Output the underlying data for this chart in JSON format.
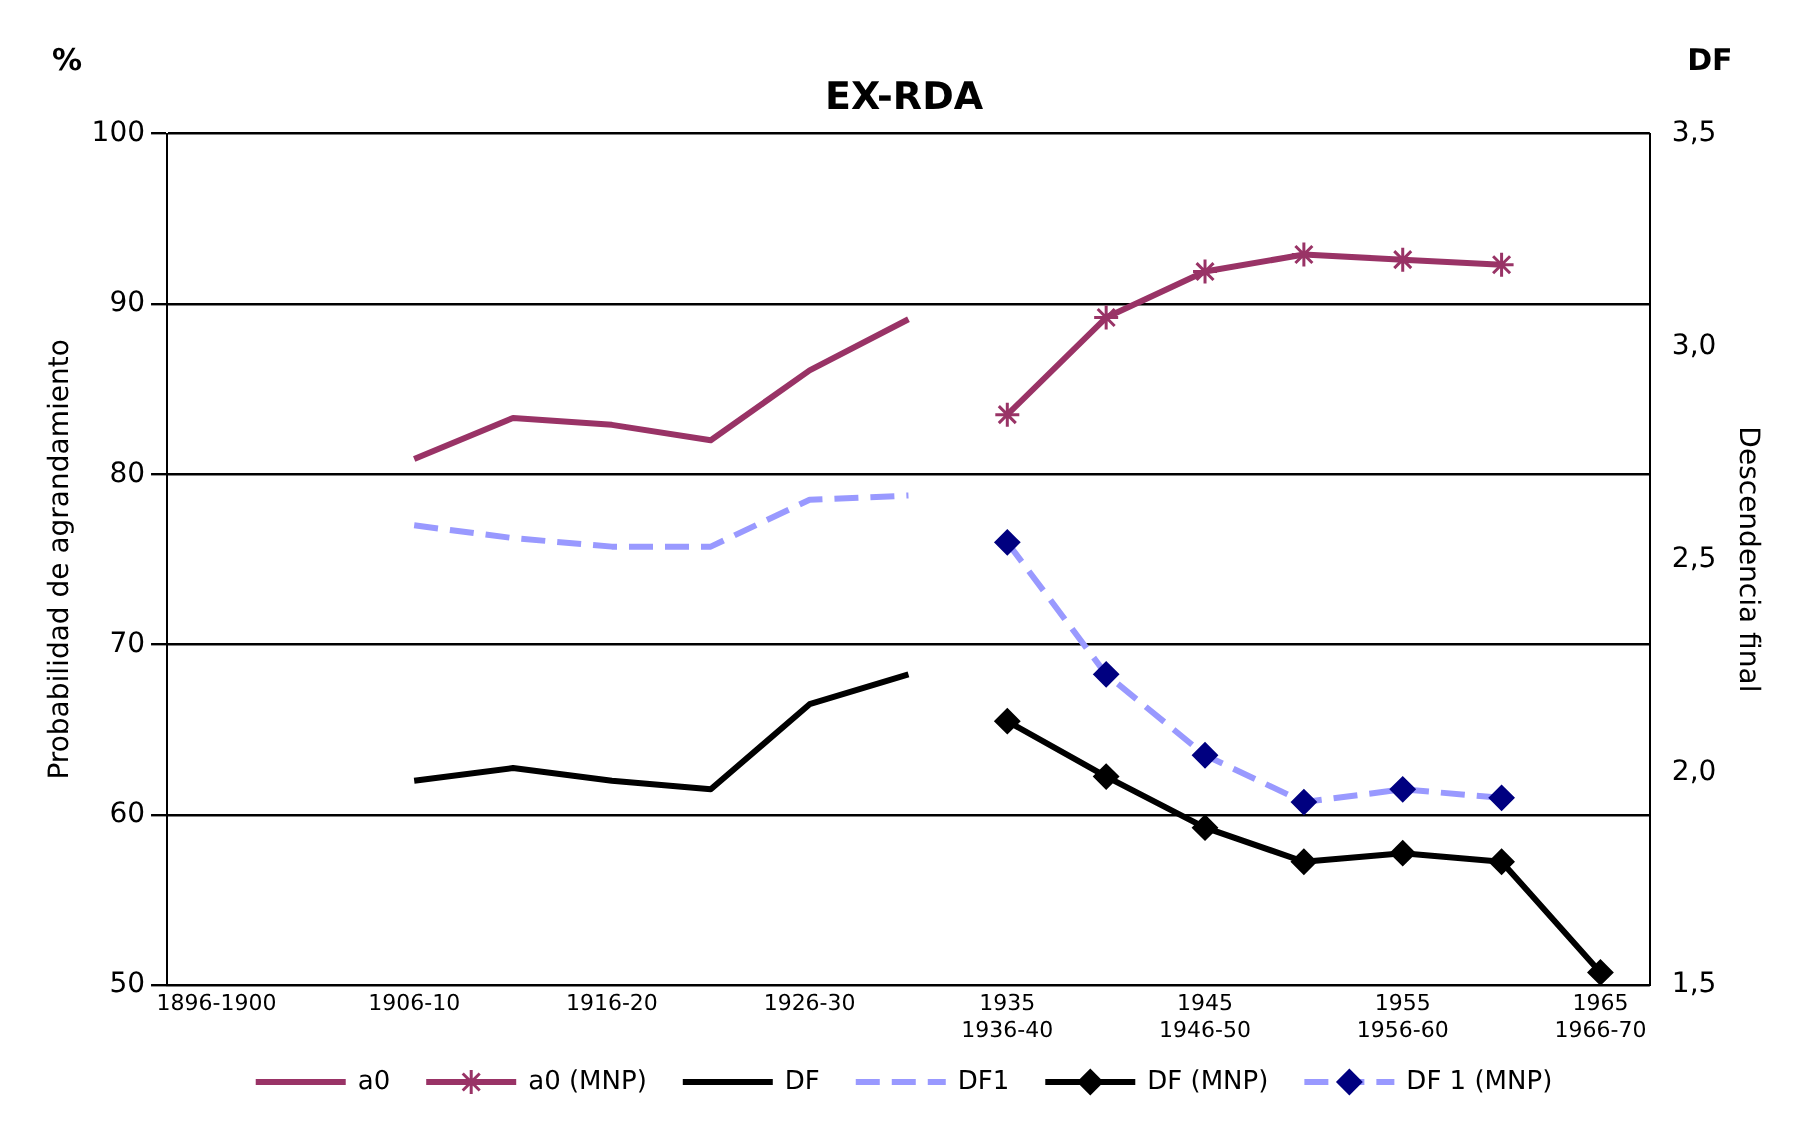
{
  "chart_data": {
    "type": "line",
    "title": "EX-RDA",
    "ylabel": "Probabilidad de agrandamiento",
    "y2label": "Descendencia final",
    "annotations": [
      "%",
      "DF"
    ],
    "categories": [
      "1896-1900",
      null,
      "1906-10",
      null,
      "1916-20",
      null,
      "1926-30",
      null,
      "1935\n1936-40",
      null,
      "1945\n1946-50",
      null,
      "1955\n1956-60",
      null,
      "1965\n1966-70"
    ],
    "series": [
      {
        "name": "a0",
        "color": "#993366",
        "marker": "none",
        "values": [
          null,
          null,
          80.9,
          83.3,
          82.9,
          82.0,
          86.1,
          89.1,
          null,
          null,
          null,
          null,
          null,
          null,
          null
        ]
      },
      {
        "name": "a0 (MNP)",
        "color": "#993366",
        "marker": "cross",
        "values": [
          null,
          null,
          null,
          null,
          null,
          null,
          null,
          null,
          83.5,
          89.2,
          91.9,
          92.9,
          92.6,
          92.3,
          null
        ]
      },
      {
        "name": "DF",
        "color": "#000000",
        "marker": "none",
        "axis": "y2",
        "values": [
          null,
          null,
          1.98,
          2.01,
          1.98,
          1.96,
          2.16,
          2.23,
          null,
          null,
          null,
          null,
          null,
          null,
          null
        ]
      },
      {
        "name": "DF1",
        "color": "#9999ff",
        "marker": "none",
        "line_style": "dashed",
        "axis": "y2",
        "values": [
          null,
          null,
          2.58,
          2.55,
          2.53,
          2.53,
          2.64,
          2.65,
          null,
          null,
          null,
          null,
          null,
          null,
          null
        ]
      },
      {
        "name": "DF (MNP)",
        "color": "#000000",
        "marker": "diamond",
        "axis": "y2",
        "values": [
          null,
          null,
          null,
          null,
          null,
          null,
          null,
          null,
          2.12,
          1.99,
          1.87,
          1.79,
          1.81,
          1.79,
          1.53
        ]
      },
      {
        "name": "DF 1 (MNP)",
        "color": "#9999ff",
        "colors": [
          null,
          null,
          null,
          null,
          null,
          null,
          null,
          null,
          "#000080",
          "#000080",
          "#000080",
          "#000080",
          "#000080",
          "#000080",
          null
        ],
        "marker": "diamond",
        "line_style": "dashed",
        "axis": "y2",
        "values": [
          null,
          null,
          null,
          null,
          null,
          null,
          null,
          null,
          2.54,
          2.23,
          2.04,
          1.93,
          1.96,
          1.94,
          null
        ]
      }
    ],
    "ylim": [
      50,
      100
    ],
    "yticks": [
      50,
      60,
      70,
      80,
      90,
      100
    ],
    "y2lim": [
      1.5,
      3.5
    ],
    "y2ticks": [
      {
        "value": 1.5,
        "label": "1,5"
      },
      {
        "value": 2.0,
        "label": "2,0"
      },
      {
        "value": 2.5,
        "label": "2,5"
      },
      {
        "value": 3.0,
        "label": "3,0"
      },
      {
        "value": 3.5,
        "label": "3,5"
      }
    ],
    "grid": "y",
    "legend": "bottom"
  }
}
